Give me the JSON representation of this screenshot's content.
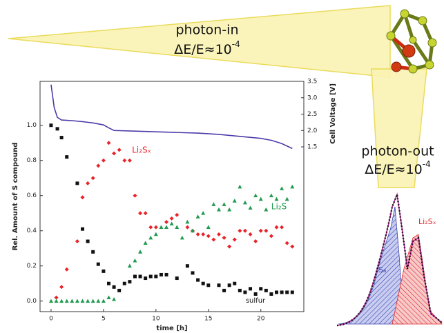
{
  "chart_data": {
    "type": "scatter",
    "xlabel": "time [h]",
    "ylabel": "Rel. Amount of S compound",
    "y2label": "Cell Voltage [V]",
    "xlim": [
      -1.05,
      24.1
    ],
    "xticks": [
      0,
      5,
      10,
      15,
      20
    ],
    "ylim": [
      -0.06,
      1.25
    ],
    "yticks": [
      {
        "value": 0,
        "label": "0.0"
      },
      {
        "value": 0.2,
        "label": "0.2"
      },
      {
        "value": 0.4,
        "label": "0.4"
      },
      {
        "value": 0.6,
        "label": "0.6"
      },
      {
        "value": 0.8,
        "label": "0.8"
      },
      {
        "value": 1,
        "label": "1.0"
      }
    ],
    "y2lim": [
      -3.53,
      3.5
    ],
    "y2ticks": [
      1.5,
      {
        "value": 2,
        "label": "2.0"
      },
      2.5,
      {
        "value": 3,
        "label": "3.0"
      },
      3.5
    ],
    "series": [
      {
        "name": "sulfur",
        "color": "#111111",
        "marker": "square",
        "x": [
          0,
          0.6,
          1,
          1.5,
          2.5,
          3,
          3.5,
          4,
          4.5,
          5,
          5.5,
          6,
          6.5,
          7,
          7.5,
          8,
          8.5,
          9,
          9.5,
          10,
          10.5,
          11,
          12,
          13,
          13.5,
          14,
          14.5,
          15,
          16,
          16.5,
          17,
          17.5,
          18,
          18.5,
          19,
          19.5,
          20,
          20.5,
          21,
          21.5,
          22,
          22.5,
          23
        ],
        "values": [
          1.0,
          0.98,
          0.93,
          0.82,
          0.67,
          0.41,
          0.34,
          0.28,
          0.21,
          0.17,
          0.1,
          0.08,
          0.06,
          0.1,
          0.11,
          0.14,
          0.14,
          0.13,
          0.14,
          0.14,
          0.15,
          0.15,
          0.13,
          0.2,
          0.16,
          0.12,
          0.1,
          0.09,
          0.09,
          0.06,
          0.09,
          0.1,
          0.06,
          0.05,
          0.07,
          0.04,
          0.07,
          0.06,
          0.04,
          0.05,
          0.05,
          0.05,
          0.05
        ]
      },
      {
        "name": "Li₂Sₓ",
        "color": "#e8242a",
        "marker": "diamond",
        "x": [
          0.5,
          1,
          1.5,
          2.5,
          3,
          3.5,
          4,
          4.5,
          5,
          5.5,
          6,
          6.5,
          7,
          7.5,
          8,
          8.5,
          9,
          9.5,
          10,
          11,
          11.5,
          12,
          13,
          13.5,
          14,
          14.5,
          15,
          15.5,
          16,
          16.5,
          17,
          17.5,
          18,
          18.5,
          19,
          19.5,
          20,
          20.5,
          21,
          21.5,
          22,
          22.5,
          23
        ],
        "values": [
          0.02,
          0.08,
          0.18,
          0.34,
          0.59,
          0.67,
          0.7,
          0.77,
          0.8,
          0.9,
          0.84,
          0.86,
          0.8,
          0.8,
          0.6,
          0.5,
          0.5,
          0.42,
          0.42,
          0.45,
          0.47,
          0.49,
          0.42,
          0.4,
          0.38,
          0.38,
          0.37,
          0.35,
          0.38,
          0.36,
          0.31,
          0.35,
          0.4,
          0.4,
          0.38,
          0.34,
          0.4,
          0.4,
          0.37,
          0.42,
          0.42,
          0.33,
          0.31
        ]
      },
      {
        "name": "Li₂S",
        "color": "#1f9a4f",
        "marker": "triangle",
        "x": [
          0,
          0.5,
          1,
          1.5,
          2,
          2.5,
          3,
          3.5,
          4,
          4.5,
          5,
          5.5,
          6,
          7.5,
          8,
          8.5,
          9,
          9.5,
          10,
          10.5,
          11,
          11.5,
          12,
          12.5,
          13,
          13.5,
          14,
          14.5,
          15,
          15.5,
          16,
          16.5,
          17,
          17.5,
          18,
          18.5,
          19,
          19.5,
          20,
          20.5,
          21,
          21.5,
          22,
          22.5,
          23
        ],
        "values": [
          0,
          0,
          0,
          0,
          0,
          0,
          0,
          0,
          0,
          0,
          0,
          0.02,
          0.01,
          0.2,
          0.23,
          0.28,
          0.33,
          0.36,
          0.38,
          0.42,
          0.42,
          0.44,
          0.42,
          0.36,
          0.45,
          0.4,
          0.48,
          0.5,
          0.42,
          0.55,
          0.52,
          0.55,
          0.52,
          0.57,
          0.65,
          0.56,
          0.53,
          0.6,
          0.58,
          0.52,
          0.6,
          0.58,
          0.64,
          0.58,
          0.65
        ]
      },
      {
        "type": "line",
        "axis": "y2",
        "color": "#4b3aa8",
        "x": [
          0,
          0.3,
          0.6,
          1,
          2,
          3,
          4,
          5,
          5.5,
          6,
          8,
          10,
          12,
          14,
          16,
          18,
          20,
          21,
          22,
          23
        ],
        "values": [
          3.4,
          2.7,
          2.4,
          2.32,
          2.3,
          2.27,
          2.23,
          2.17,
          2.08,
          2.0,
          1.98,
          1.96,
          1.94,
          1.92,
          1.88,
          1.82,
          1.76,
          1.7,
          1.6,
          1.45
        ]
      }
    ]
  },
  "annotations": {
    "photon_in": "photon-in",
    "photon_in_res": {
      "base": "ΔE/E≈10",
      "sup": "-4"
    },
    "photon_out": "photon-out",
    "photon_out_res": {
      "base": "ΔE/E≈10",
      "sup": "-4"
    },
    "inset_labels": [
      "S₈",
      "Li₂Sₓ"
    ]
  }
}
